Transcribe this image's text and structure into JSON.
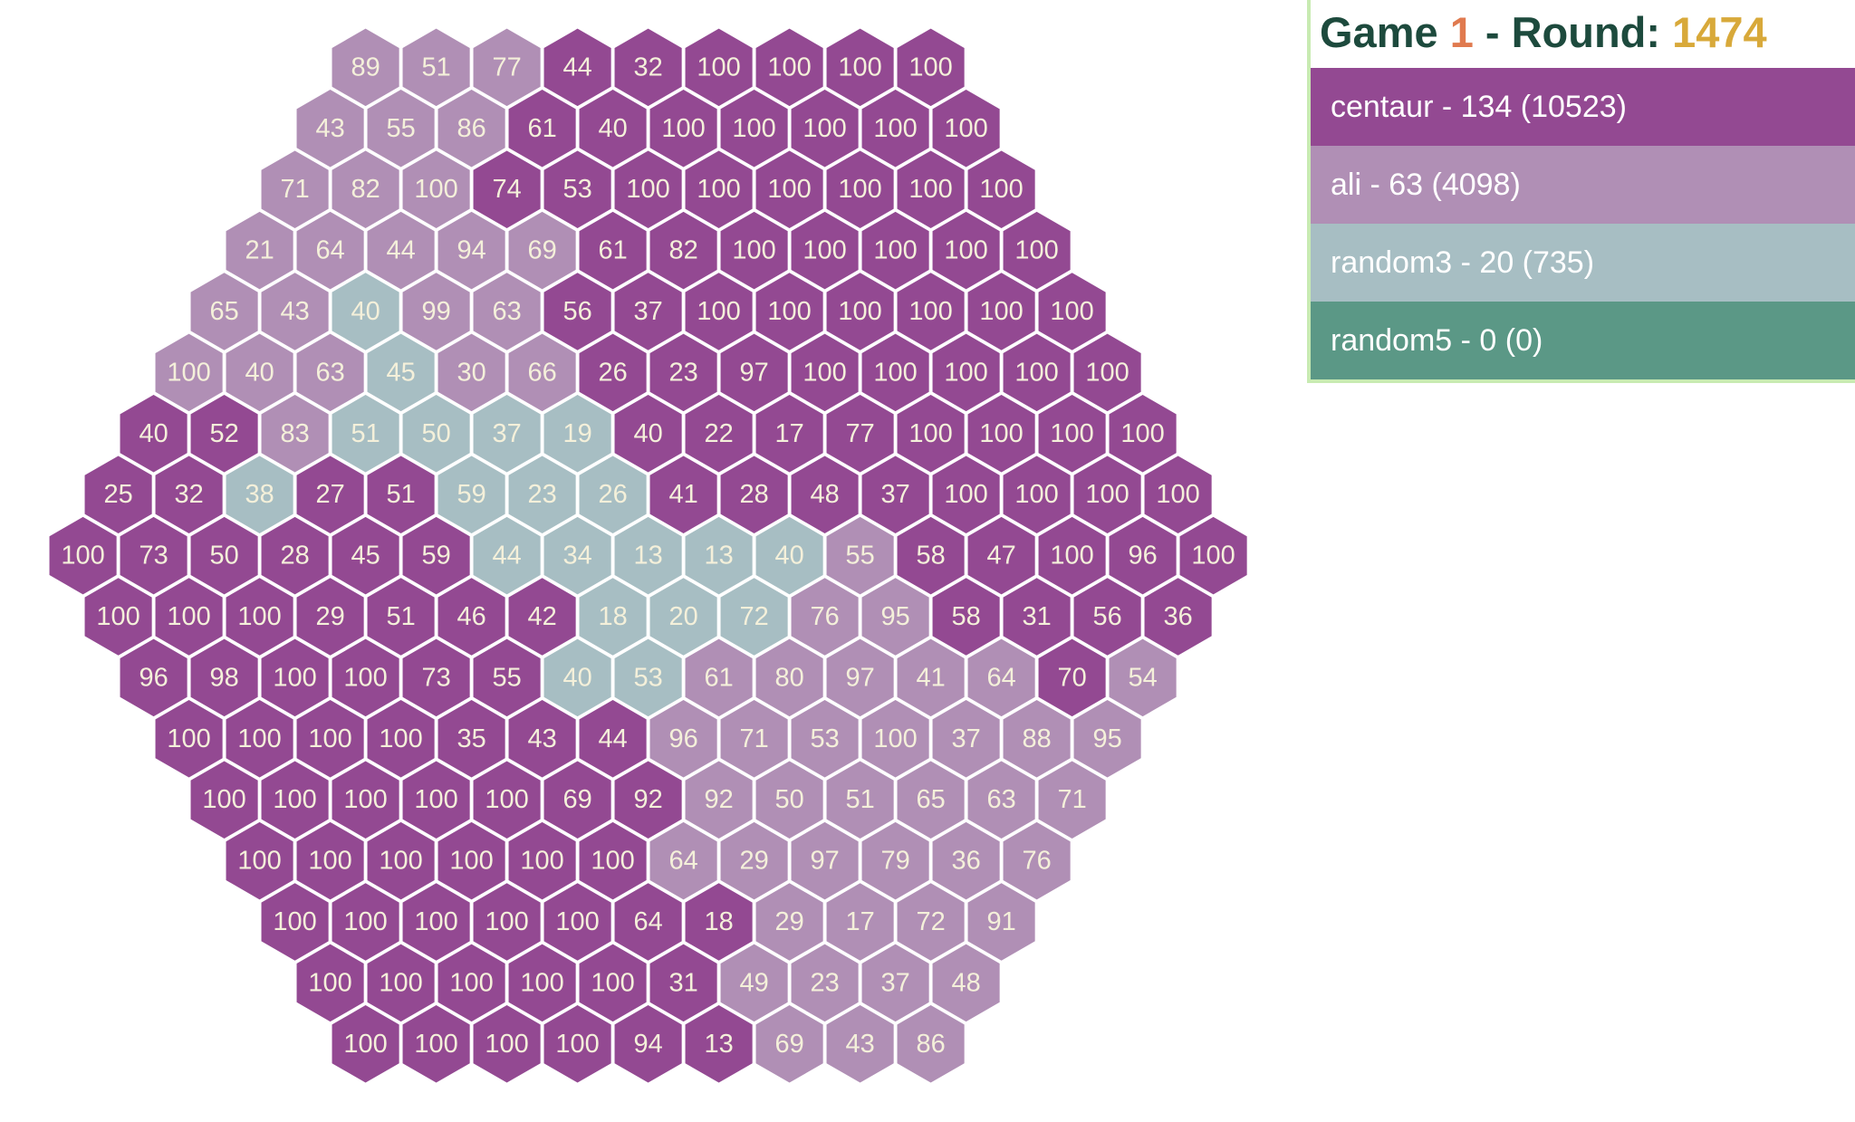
{
  "header": {
    "game_label": "Game",
    "game": 1,
    "round_label": "- Round:",
    "round": 1474
  },
  "players": [
    {
      "label": "centaur - 134 (10523)",
      "color": "#934992"
    },
    {
      "label": "ali - 63 (4098)",
      "color": "#b08fb5"
    },
    {
      "label": "random3 - 20 (735)",
      "color": "#a7bec3"
    },
    {
      "label": "random5 - 0 (0)",
      "color": "#5b9886"
    }
  ],
  "board": {
    "rows": [
      {
        "values": [
          89,
          51,
          77,
          44,
          32,
          100,
          100,
          100,
          100
        ],
        "owners": [
          1,
          1,
          1,
          0,
          0,
          0,
          0,
          0,
          0
        ]
      },
      {
        "values": [
          43,
          55,
          86,
          61,
          40,
          100,
          100,
          100,
          100,
          100
        ],
        "owners": [
          1,
          1,
          1,
          0,
          0,
          0,
          0,
          0,
          0,
          0
        ]
      },
      {
        "values": [
          71,
          82,
          100,
          74,
          53,
          100,
          100,
          100,
          100,
          100,
          100
        ],
        "owners": [
          1,
          1,
          1,
          0,
          0,
          0,
          0,
          0,
          0,
          0,
          0
        ]
      },
      {
        "values": [
          21,
          64,
          44,
          94,
          69,
          61,
          82,
          100,
          100,
          100,
          100,
          100
        ],
        "owners": [
          1,
          1,
          1,
          1,
          1,
          0,
          0,
          0,
          0,
          0,
          0,
          0
        ]
      },
      {
        "values": [
          65,
          43,
          40,
          99,
          63,
          56,
          37,
          100,
          100,
          100,
          100,
          100,
          100
        ],
        "owners": [
          1,
          1,
          2,
          1,
          1,
          0,
          0,
          0,
          0,
          0,
          0,
          0,
          0
        ]
      },
      {
        "values": [
          100,
          40,
          63,
          45,
          30,
          66,
          26,
          23,
          97,
          100,
          100,
          100,
          100,
          100
        ],
        "owners": [
          1,
          1,
          1,
          2,
          1,
          1,
          0,
          0,
          0,
          0,
          0,
          0,
          0,
          0
        ]
      },
      {
        "values": [
          40,
          52,
          83,
          51,
          50,
          37,
          19,
          40,
          22,
          17,
          77,
          100,
          100,
          100,
          100
        ],
        "owners": [
          0,
          0,
          1,
          2,
          2,
          2,
          2,
          0,
          0,
          0,
          0,
          0,
          0,
          0,
          0
        ]
      },
      {
        "values": [
          25,
          32,
          38,
          27,
          51,
          59,
          23,
          26,
          41,
          28,
          48,
          37,
          100,
          100,
          100,
          100
        ],
        "owners": [
          0,
          0,
          2,
          0,
          0,
          2,
          2,
          2,
          0,
          0,
          0,
          0,
          0,
          0,
          0,
          0
        ]
      },
      {
        "values": [
          100,
          73,
          50,
          28,
          45,
          59,
          44,
          34,
          13,
          13,
          40,
          55,
          58,
          47,
          100,
          96,
          100
        ],
        "owners": [
          0,
          0,
          0,
          0,
          0,
          0,
          2,
          2,
          2,
          2,
          2,
          1,
          0,
          0,
          0,
          0,
          0
        ]
      },
      {
        "values": [
          100,
          100,
          100,
          29,
          51,
          46,
          42,
          18,
          20,
          72,
          76,
          95,
          58,
          31,
          56,
          36
        ],
        "owners": [
          0,
          0,
          0,
          0,
          0,
          0,
          0,
          2,
          2,
          2,
          1,
          1,
          0,
          0,
          0,
          0
        ]
      },
      {
        "values": [
          96,
          98,
          100,
          100,
          73,
          55,
          40,
          53,
          61,
          80,
          97,
          41,
          64,
          70,
          54
        ],
        "owners": [
          0,
          0,
          0,
          0,
          0,
          0,
          2,
          2,
          1,
          1,
          1,
          1,
          1,
          0,
          1
        ]
      },
      {
        "values": [
          100,
          100,
          100,
          100,
          35,
          43,
          44,
          96,
          71,
          53,
          100,
          37,
          88,
          95
        ],
        "owners": [
          0,
          0,
          0,
          0,
          0,
          0,
          0,
          1,
          1,
          1,
          1,
          1,
          1,
          1
        ]
      },
      {
        "values": [
          100,
          100,
          100,
          100,
          100,
          69,
          92,
          92,
          50,
          51,
          65,
          63,
          71
        ],
        "owners": [
          0,
          0,
          0,
          0,
          0,
          0,
          0,
          1,
          1,
          1,
          1,
          1,
          1
        ]
      },
      {
        "values": [
          100,
          100,
          100,
          100,
          100,
          100,
          64,
          29,
          97,
          79,
          36,
          76
        ],
        "owners": [
          0,
          0,
          0,
          0,
          0,
          0,
          1,
          1,
          1,
          1,
          1,
          1
        ]
      },
      {
        "values": [
          100,
          100,
          100,
          100,
          100,
          64,
          18,
          29,
          17,
          72,
          91
        ],
        "owners": [
          0,
          0,
          0,
          0,
          0,
          0,
          0,
          1,
          1,
          1,
          1
        ]
      },
      {
        "values": [
          100,
          100,
          100,
          100,
          100,
          31,
          49,
          23,
          37,
          48
        ],
        "owners": [
          0,
          0,
          0,
          0,
          0,
          0,
          1,
          1,
          1,
          1
        ]
      },
      {
        "values": [
          100,
          100,
          100,
          100,
          94,
          13,
          69,
          43,
          86
        ],
        "owners": [
          0,
          0,
          0,
          0,
          0,
          0,
          1,
          1,
          1
        ]
      }
    ]
  }
}
